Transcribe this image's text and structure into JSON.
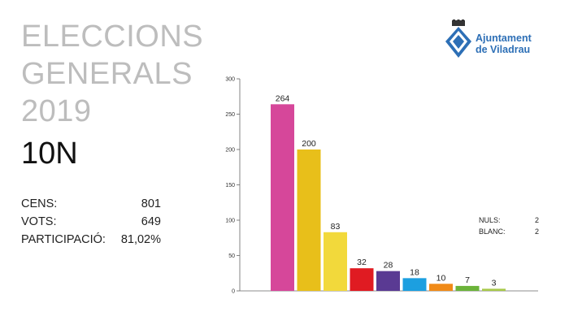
{
  "header": {
    "title_lines": [
      "ELECCIONS",
      "GENERALS",
      "2019"
    ],
    "date_label": "10N"
  },
  "stats": [
    {
      "label": "CENS:",
      "value": "801"
    },
    {
      "label": "VOTS:",
      "value": "649"
    },
    {
      "label": "PARTICIPACIÓ:",
      "value": "81,02%"
    }
  ],
  "logo": {
    "line1": "Ajuntament",
    "line2": "de Viladrau",
    "icon": "shield-crest-icon",
    "color": "#2d6fb6"
  },
  "side_counts": [
    {
      "label": "NULS:",
      "value": "2"
    },
    {
      "label": "BLANC:",
      "value": "2"
    }
  ],
  "chart_data": {
    "type": "bar",
    "title": "",
    "xlabel": "",
    "ylabel": "",
    "ylim": [
      0,
      300
    ],
    "yticks": [
      0,
      50,
      100,
      150,
      200,
      250,
      300
    ],
    "grid": false,
    "values": [
      264,
      200,
      83,
      32,
      28,
      18,
      10,
      7,
      3
    ],
    "colors": [
      "#d6479a",
      "#e8bf1a",
      "#f2d93b",
      "#e01b22",
      "#5a3a93",
      "#1c9fe0",
      "#f08a18",
      "#6bb33a",
      "#a8c94a"
    ],
    "data_labels": [
      "264",
      "200",
      "83",
      "32",
      "28",
      "18",
      "10",
      "7",
      "3"
    ]
  }
}
